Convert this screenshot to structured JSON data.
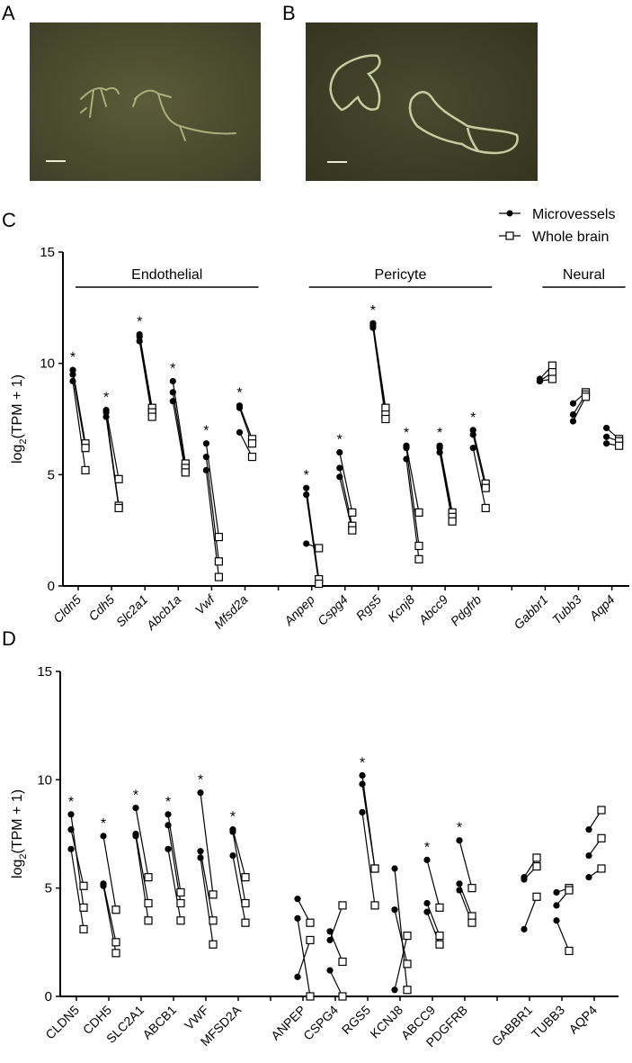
{
  "panel_labels": {
    "a": "A",
    "b": "B",
    "c": "C",
    "d": "D"
  },
  "legend": {
    "microvessels": "Microvessels",
    "whole_brain": "Whole brain"
  },
  "chart_data": [
    {
      "type": "scatter",
      "panel": "C",
      "ylabel_parts": [
        "log",
        "2",
        "(TPM + 1)"
      ],
      "ylim": [
        0,
        15
      ],
      "yticks": [
        0,
        5,
        10,
        15
      ],
      "italic": true,
      "groups": [
        {
          "name": "Endothelial",
          "from": 0,
          "to": 5
        },
        {
          "name": "Pericyte",
          "from": 6,
          "to": 11
        },
        {
          "name": "Neural",
          "from": 12,
          "to": 14
        }
      ],
      "genes": [
        {
          "name": "Cldn5",
          "sig": true,
          "micro": [
            9.7,
            9.5,
            9.2
          ],
          "whole": [
            6.4,
            6.2,
            5.2
          ]
        },
        {
          "name": "Cdh5",
          "sig": true,
          "micro": [
            7.9,
            7.8,
            7.6
          ],
          "whole": [
            4.8,
            3.6,
            3.5
          ]
        },
        {
          "name": "Slc2a1",
          "sig": true,
          "micro": [
            11.3,
            11.2,
            11.0
          ],
          "whole": [
            8.0,
            7.8,
            7.6
          ]
        },
        {
          "name": "Abcb1a",
          "sig": true,
          "micro": [
            9.2,
            8.7,
            8.3
          ],
          "whole": [
            5.5,
            5.3,
            5.1
          ]
        },
        {
          "name": "Vwf",
          "sig": true,
          "micro": [
            6.4,
            5.8,
            5.2
          ],
          "whole": [
            2.2,
            1.1,
            0.4
          ]
        },
        {
          "name": "Mfsd2a",
          "sig": true,
          "micro": [
            8.1,
            8.0,
            6.9
          ],
          "whole": [
            6.6,
            6.4,
            5.8
          ]
        },
        {
          "name": "Anpep",
          "sig": true,
          "micro": [
            4.4,
            4.1,
            1.9
          ],
          "whole": [
            0.3,
            0.1,
            1.7
          ]
        },
        {
          "name": "Cspg4",
          "sig": true,
          "micro": [
            6.0,
            5.3,
            4.9
          ],
          "whole": [
            3.3,
            2.7,
            2.5
          ]
        },
        {
          "name": "Rgs5",
          "sig": true,
          "micro": [
            11.8,
            11.7,
            11.6
          ],
          "whole": [
            8.0,
            7.7,
            7.5
          ]
        },
        {
          "name": "Kcnj8",
          "sig": true,
          "micro": [
            6.3,
            6.2,
            5.7
          ],
          "whole": [
            3.3,
            1.8,
            1.2
          ]
        },
        {
          "name": "Abcc9",
          "sig": true,
          "micro": [
            6.3,
            6.2,
            6.0
          ],
          "whole": [
            3.3,
            3.1,
            2.9
          ]
        },
        {
          "name": "Pdgfrb",
          "sig": true,
          "micro": [
            7.0,
            6.8,
            6.2
          ],
          "whole": [
            4.6,
            4.4,
            3.5
          ]
        },
        {
          "name": "Gabbr1",
          "sig": false,
          "micro": [
            9.3,
            9.2,
            9.2
          ],
          "whole": [
            9.9,
            9.6,
            9.3
          ]
        },
        {
          "name": "Tubb3",
          "sig": false,
          "micro": [
            8.2,
            7.7,
            7.4
          ],
          "whole": [
            8.7,
            8.6,
            8.5
          ]
        },
        {
          "name": "Aqp4",
          "sig": false,
          "micro": [
            7.1,
            6.7,
            6.4
          ],
          "whole": [
            6.6,
            6.5,
            6.3
          ]
        }
      ]
    },
    {
      "type": "scatter",
      "panel": "D",
      "ylabel_parts": [
        "log",
        "2",
        "(TPM + 1)"
      ],
      "ylim": [
        0,
        15
      ],
      "yticks": [
        0,
        5,
        10,
        15
      ],
      "italic": false,
      "groups": [],
      "genes": [
        {
          "name": "CLDN5",
          "sig": true,
          "micro": [
            8.4,
            7.7,
            6.8
          ],
          "whole": [
            4.1,
            5.1,
            3.1
          ]
        },
        {
          "name": "CDH5",
          "sig": true,
          "micro": [
            7.4,
            5.2,
            5.1
          ],
          "whole": [
            4.0,
            2.5,
            2.0
          ]
        },
        {
          "name": "SLC2A1",
          "sig": true,
          "micro": [
            8.7,
            7.5,
            7.4
          ],
          "whole": [
            5.5,
            4.3,
            3.5
          ]
        },
        {
          "name": "ABCB1",
          "sig": true,
          "micro": [
            8.4,
            7.9,
            6.8
          ],
          "whole": [
            4.8,
            4.3,
            3.5
          ]
        },
        {
          "name": "VWF",
          "sig": true,
          "micro": [
            9.4,
            6.7,
            6.4
          ],
          "whole": [
            4.7,
            3.5,
            2.4
          ]
        },
        {
          "name": "MFSD2A",
          "sig": true,
          "micro": [
            7.7,
            7.6,
            6.5
          ],
          "whole": [
            5.5,
            4.3,
            3.4
          ]
        },
        {
          "name": "ANPEP",
          "sig": false,
          "micro": [
            4.5,
            3.6,
            0.9
          ],
          "whole": [
            3.4,
            0.0,
            2.6
          ]
        },
        {
          "name": "CSPG4",
          "sig": false,
          "micro": [
            3.0,
            2.6,
            1.2
          ],
          "whole": [
            1.6,
            4.2,
            0.0
          ]
        },
        {
          "name": "RGS5",
          "sig": true,
          "micro": [
            10.2,
            9.8,
            8.5
          ],
          "whole": [
            5.9,
            5.9,
            4.2
          ]
        },
        {
          "name": "KCNJ8",
          "sig": false,
          "micro": [
            5.9,
            4.0,
            0.3
          ],
          "whole": [
            0.3,
            1.5,
            2.8
          ]
        },
        {
          "name": "ABCC9",
          "sig": true,
          "micro": [
            6.3,
            4.3,
            3.9
          ],
          "whole": [
            4.1,
            2.8,
            2.4
          ]
        },
        {
          "name": "PDGFRB",
          "sig": true,
          "micro": [
            7.2,
            5.2,
            4.9
          ],
          "whole": [
            5.0,
            3.7,
            3.4
          ]
        },
        {
          "name": "GABBR1",
          "sig": false,
          "micro": [
            5.5,
            5.4,
            3.1
          ],
          "whole": [
            6.4,
            6.0,
            4.6
          ]
        },
        {
          "name": "TUBB3",
          "sig": false,
          "micro": [
            4.8,
            4.2,
            3.5
          ],
          "whole": [
            5.0,
            4.9,
            2.1
          ]
        },
        {
          "name": "AQP4",
          "sig": false,
          "micro": [
            7.7,
            6.5,
            5.5
          ],
          "whole": [
            8.6,
            7.3,
            5.9
          ]
        }
      ]
    }
  ]
}
